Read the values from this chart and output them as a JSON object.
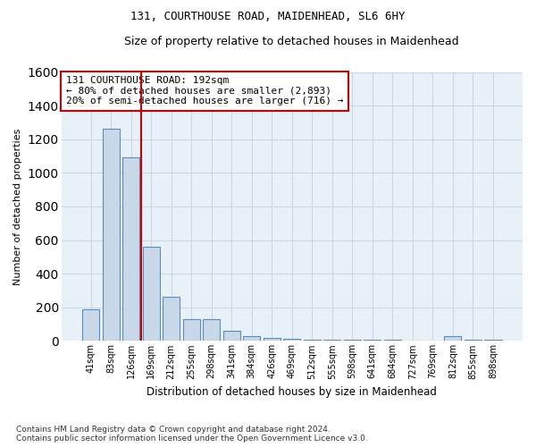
{
  "title1": "131, COURTHOUSE ROAD, MAIDENHEAD, SL6 6HY",
  "title2": "Size of property relative to detached houses in Maidenhead",
  "xlabel": "Distribution of detached houses by size in Maidenhead",
  "ylabel": "Number of detached properties",
  "categories": [
    "41sqm",
    "83sqm",
    "126sqm",
    "169sqm",
    "212sqm",
    "255sqm",
    "298sqm",
    "341sqm",
    "384sqm",
    "426sqm",
    "469sqm",
    "512sqm",
    "555sqm",
    "598sqm",
    "641sqm",
    "684sqm",
    "727sqm",
    "769sqm",
    "812sqm",
    "855sqm",
    "898sqm"
  ],
  "values": [
    190,
    1265,
    1095,
    560,
    265,
    130,
    130,
    60,
    30,
    20,
    15,
    10,
    10,
    5,
    5,
    5,
    0,
    0,
    30,
    5,
    5
  ],
  "bar_color": "#c8d8e8",
  "bar_edge_color": "#5b8db8",
  "vline_color": "#cc0000",
  "vline_pos": 2.5,
  "annotation_text": "131 COURTHOUSE ROAD: 192sqm\n← 80% of detached houses are smaller (2,893)\n20% of semi-detached houses are larger (716) →",
  "annotation_box_color": "#ffffff",
  "annotation_box_edge": "#cc0000",
  "ylim": [
    0,
    1600
  ],
  "yticks": [
    0,
    200,
    400,
    600,
    800,
    1000,
    1200,
    1400,
    1600
  ],
  "grid_color": "#c8d8e8",
  "footer1": "Contains HM Land Registry data © Crown copyright and database right 2024.",
  "footer2": "Contains public sector information licensed under the Open Government Licence v3.0.",
  "bg_color": "#e8f0f8"
}
